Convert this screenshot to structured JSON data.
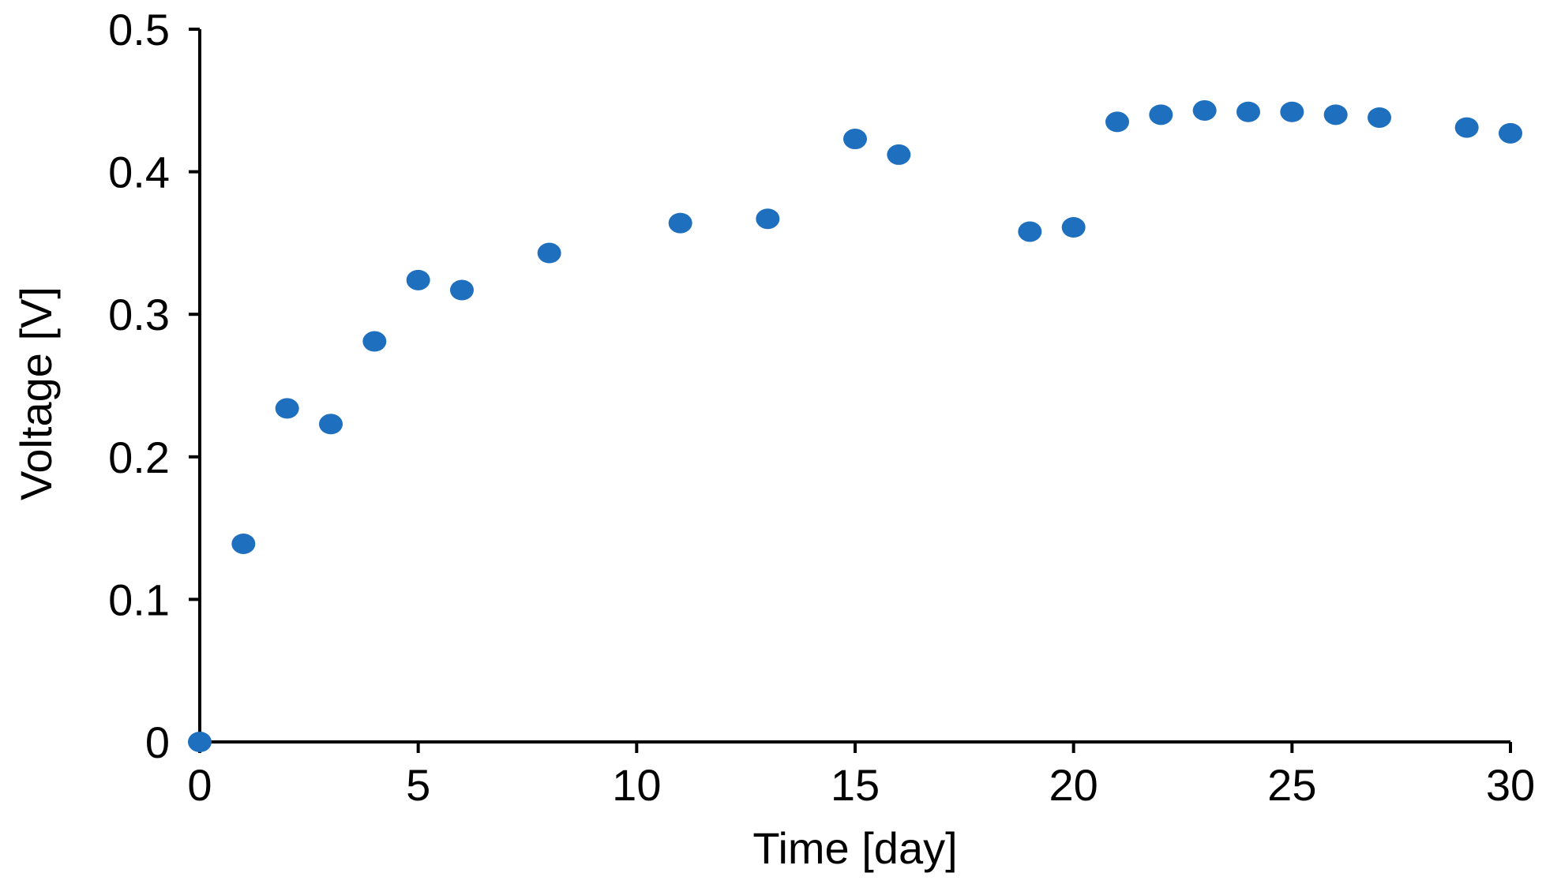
{
  "chart_data": {
    "type": "scatter",
    "title": "",
    "xlabel": "Time  [day]",
    "ylabel": "Voltage  [V]",
    "xlim": [
      0,
      30
    ],
    "ylim": [
      0,
      0.5
    ],
    "x_ticks": [
      0,
      5,
      10,
      15,
      20,
      25,
      30
    ],
    "x_tick_labels": [
      "0",
      "5",
      "10",
      "15",
      "20",
      "25",
      "30"
    ],
    "y_ticks": [
      0,
      0.1,
      0.2,
      0.3,
      0.4,
      0.5
    ],
    "y_tick_labels": [
      "0",
      "0.1",
      "0.2",
      "0.3",
      "0.4",
      "0.5"
    ],
    "grid": false,
    "legend": "none",
    "marker_color": "#1f6fbf",
    "series": [
      {
        "x": [
          0,
          1,
          2,
          3,
          4,
          5,
          6,
          8,
          11,
          13,
          15,
          16,
          19,
          20,
          21,
          22,
          23,
          24,
          25,
          26,
          27,
          29,
          30
        ],
        "y": [
          0.0,
          0.139,
          0.234,
          0.223,
          0.281,
          0.324,
          0.317,
          0.343,
          0.364,
          0.367,
          0.423,
          0.412,
          0.358,
          0.361,
          0.435,
          0.44,
          0.443,
          0.442,
          0.442,
          0.44,
          0.438,
          0.431,
          0.427
        ]
      }
    ]
  }
}
